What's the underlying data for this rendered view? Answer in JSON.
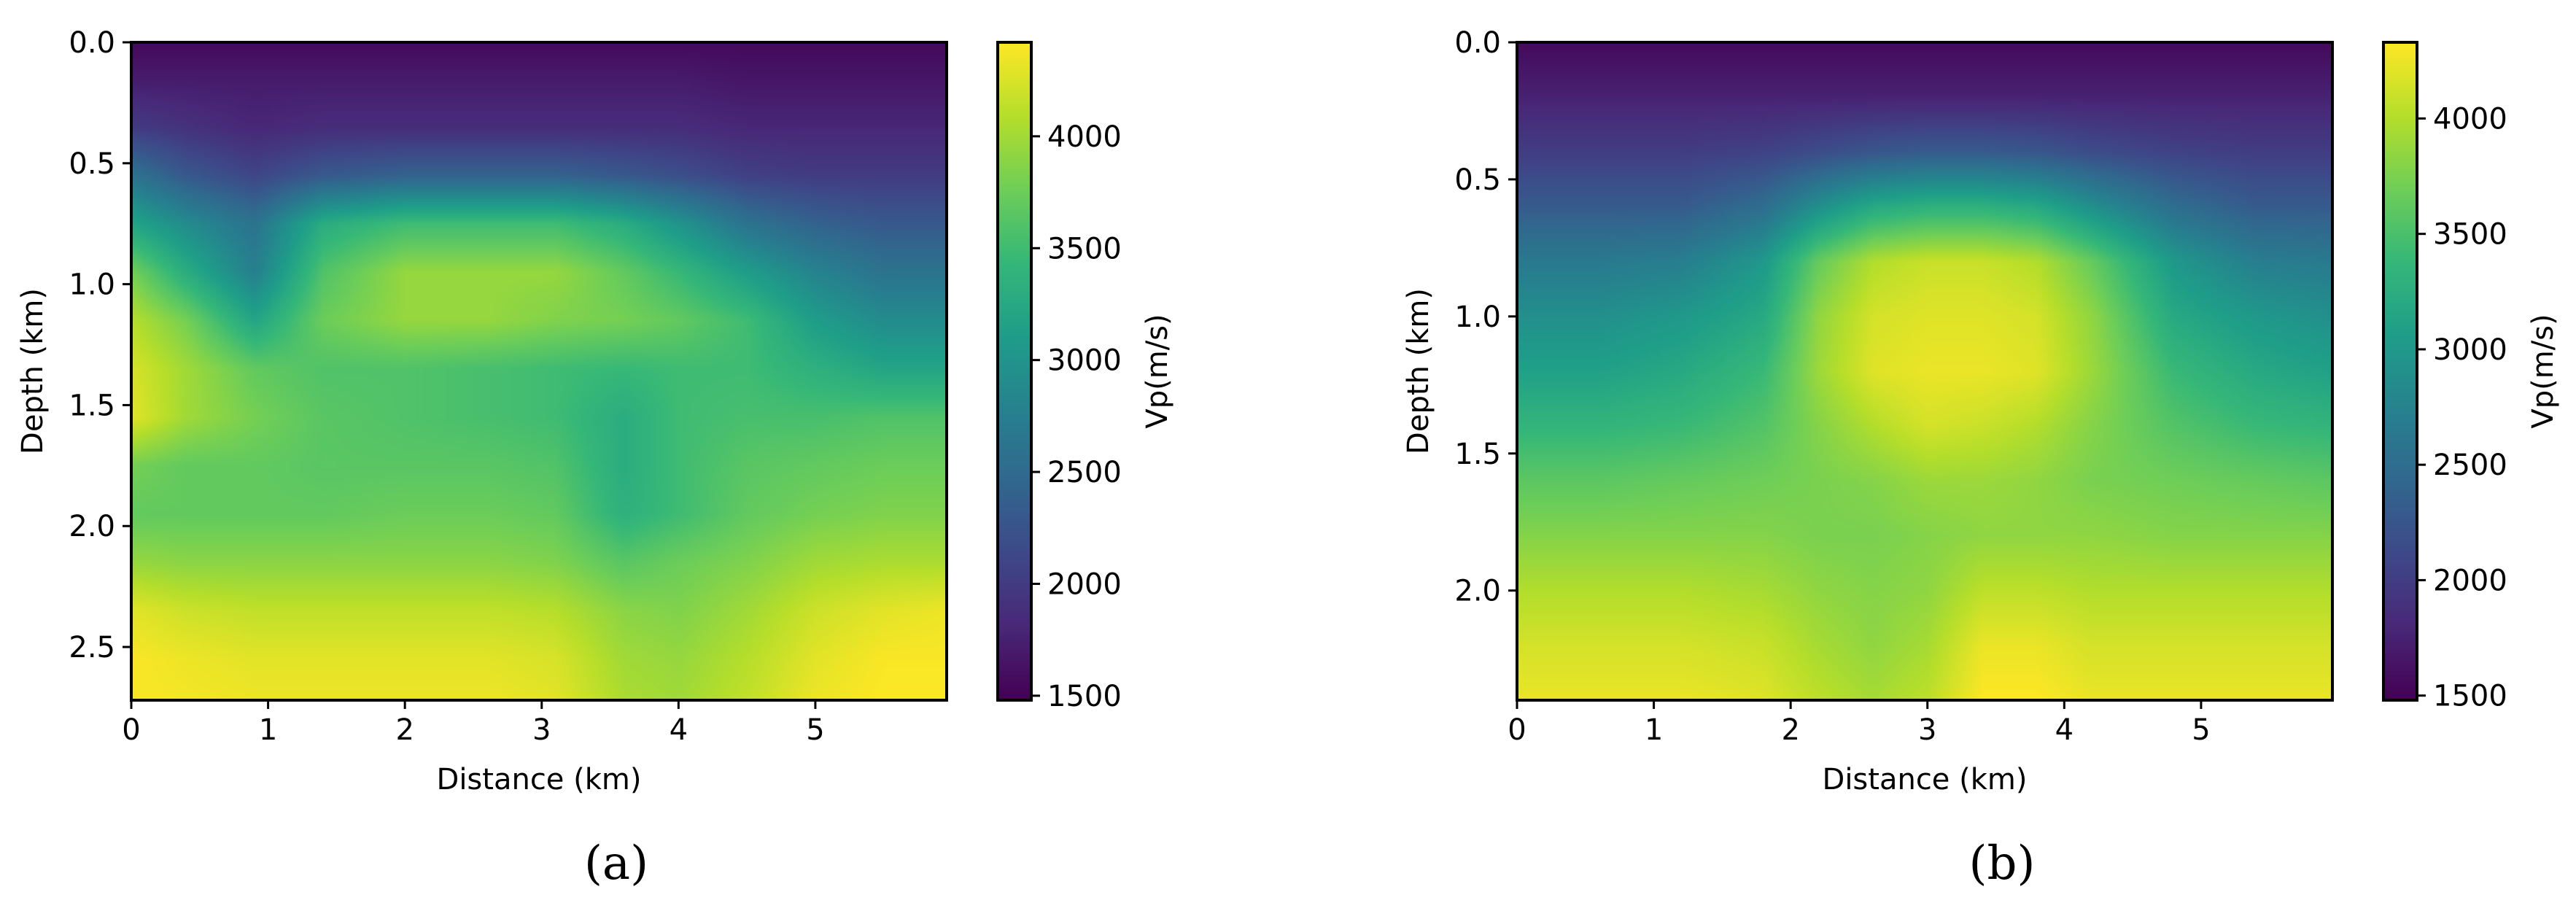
{
  "colormap": {
    "name": "viridis",
    "stops": [
      "#440154",
      "#482878",
      "#3e4989",
      "#31688e",
      "#26828e",
      "#1f9e89",
      "#35b779",
      "#6ece58",
      "#b5de2b",
      "#fde725"
    ]
  },
  "chart_data": [
    {
      "type": "heatmap",
      "panel_label": "(a)",
      "xlabel": "Distance (km)",
      "ylabel": "Depth (km)",
      "xlim": [
        0,
        5.96
      ],
      "ylim": [
        2.72,
        0.0
      ],
      "y_inverted": true,
      "x_ticks": [
        "0",
        "1",
        "2",
        "3",
        "4",
        "5"
      ],
      "y_ticks": [
        "0.0",
        "0.5",
        "1.0",
        "1.5",
        "2.0",
        "2.5"
      ],
      "colorbar": {
        "label": "Vp(m/s)",
        "range": [
          1480,
          4420
        ],
        "ticks": [
          "1500",
          "2000",
          "2500",
          "3000",
          "3500",
          "4000"
        ]
      },
      "grid": false,
      "field": {
        "x_km": [
          0.0,
          0.4,
          0.9,
          1.4,
          2.0,
          2.6,
          3.1,
          3.6,
          4.0,
          4.5,
          5.0,
          5.5,
          5.96
        ],
        "depth_km": [
          0.0,
          0.15,
          0.35,
          0.55,
          0.75,
          0.95,
          1.15,
          1.35,
          1.55,
          1.75,
          1.95,
          2.15,
          2.35,
          2.55,
          2.72
        ],
        "vp_m_per_s": [
          [
            1550,
            1550,
            1550,
            1550,
            1550,
            1550,
            1550,
            1550,
            1550,
            1550,
            1550,
            1550,
            1550
          ],
          [
            1700,
            1700,
            1700,
            1700,
            1700,
            1700,
            1700,
            1700,
            1700,
            1650,
            1650,
            1650,
            1650
          ],
          [
            2000,
            1900,
            1800,
            1850,
            1850,
            1850,
            1850,
            1850,
            1850,
            1800,
            1800,
            1800,
            1800
          ],
          [
            2600,
            2300,
            2100,
            2300,
            2400,
            2400,
            2400,
            2300,
            2200,
            2050,
            2000,
            2000,
            2000
          ],
          [
            3200,
            2900,
            2600,
            3300,
            3500,
            3500,
            3500,
            3300,
            3000,
            2600,
            2400,
            2300,
            2300
          ],
          [
            3800,
            3300,
            2750,
            3600,
            3950,
            3950,
            3950,
            3700,
            3450,
            3100,
            2800,
            2600,
            2600
          ],
          [
            4100,
            3800,
            3200,
            3750,
            3950,
            3950,
            3850,
            3800,
            3700,
            3500,
            3100,
            2900,
            2900
          ],
          [
            4250,
            4000,
            3700,
            3600,
            3600,
            3550,
            3500,
            3450,
            3500,
            3500,
            3350,
            3200,
            3200
          ],
          [
            4300,
            4000,
            3800,
            3650,
            3600,
            3550,
            3500,
            3300,
            3500,
            3550,
            3550,
            3600,
            3600
          ],
          [
            3800,
            3700,
            3700,
            3650,
            3650,
            3650,
            3600,
            3300,
            3500,
            3650,
            3700,
            3750,
            3750
          ],
          [
            3700,
            3700,
            3700,
            3700,
            3750,
            3750,
            3700,
            3350,
            3500,
            3700,
            3800,
            3850,
            3850
          ],
          [
            3950,
            3900,
            3900,
            3900,
            3900,
            3900,
            3850,
            3650,
            3750,
            3850,
            4000,
            4050,
            4050
          ],
          [
            4300,
            4200,
            4150,
            4150,
            4150,
            4150,
            4100,
            3900,
            3850,
            4000,
            4200,
            4300,
            4350
          ],
          [
            4400,
            4350,
            4300,
            4300,
            4300,
            4300,
            4250,
            4000,
            3950,
            4100,
            4300,
            4400,
            4400
          ],
          [
            4400,
            4380,
            4350,
            4350,
            4350,
            4350,
            4300,
            4050,
            4000,
            4150,
            4350,
            4420,
            4420
          ]
        ]
      }
    },
    {
      "type": "heatmap",
      "panel_label": "(b)",
      "xlabel": "Distance (km)",
      "ylabel": "Depth (km)",
      "xlim": [
        0,
        5.96
      ],
      "ylim": [
        2.4,
        0.0
      ],
      "y_inverted": true,
      "x_ticks": [
        "0",
        "1",
        "2",
        "3",
        "4",
        "5"
      ],
      "y_ticks": [
        "0.0",
        "0.5",
        "1.0",
        "1.5",
        "2.0"
      ],
      "colorbar": {
        "label": "Vp(m/s)",
        "range": [
          1480,
          4330
        ],
        "ticks": [
          "1500",
          "2000",
          "2500",
          "3000",
          "3500",
          "4000"
        ]
      },
      "grid": false,
      "field": {
        "x_km": [
          0.0,
          0.6,
          1.2,
          1.8,
          2.2,
          2.6,
          3.0,
          3.4,
          3.8,
          4.2,
          4.8,
          5.4,
          5.96
        ],
        "depth_km": [
          0.0,
          0.2,
          0.4,
          0.6,
          0.8,
          1.0,
          1.2,
          1.4,
          1.6,
          1.8,
          2.0,
          2.2,
          2.4
        ],
        "vp_m_per_s": [
          [
            1550,
            1550,
            1550,
            1550,
            1550,
            1550,
            1550,
            1550,
            1550,
            1550,
            1550,
            1550,
            1550
          ],
          [
            1750,
            1750,
            1750,
            1750,
            1750,
            1750,
            1750,
            1750,
            1750,
            1750,
            1750,
            1750,
            1750
          ],
          [
            2000,
            2000,
            2000,
            2050,
            2150,
            2250,
            2300,
            2300,
            2250,
            2150,
            2050,
            2000,
            2000
          ],
          [
            2300,
            2300,
            2300,
            2500,
            2900,
            3200,
            3300,
            3300,
            3200,
            2900,
            2500,
            2300,
            2300
          ],
          [
            2650,
            2650,
            2700,
            3000,
            3650,
            4000,
            4100,
            4100,
            4000,
            3650,
            3000,
            2700,
            2650
          ],
          [
            2900,
            2900,
            3000,
            3200,
            3850,
            4150,
            4200,
            4200,
            4150,
            3850,
            3200,
            3000,
            2900
          ],
          [
            3100,
            3100,
            3200,
            3400,
            3900,
            4200,
            4250,
            4250,
            4200,
            3900,
            3400,
            3200,
            3100
          ],
          [
            3350,
            3350,
            3400,
            3550,
            3800,
            4000,
            4150,
            4100,
            4000,
            3800,
            3550,
            3400,
            3350
          ],
          [
            3600,
            3600,
            3650,
            3700,
            3750,
            3800,
            3900,
            3900,
            3850,
            3750,
            3700,
            3650,
            3600
          ],
          [
            3800,
            3800,
            3800,
            3800,
            3750,
            3750,
            3800,
            3850,
            3850,
            3850,
            3800,
            3800,
            3800
          ],
          [
            4000,
            4000,
            4000,
            3950,
            3850,
            3800,
            3850,
            4050,
            4050,
            4000,
            4000,
            4000,
            4000
          ],
          [
            4150,
            4150,
            4150,
            4100,
            3950,
            3850,
            3950,
            4250,
            4250,
            4150,
            4150,
            4150,
            4150
          ],
          [
            4250,
            4250,
            4250,
            4200,
            4050,
            3950,
            4050,
            4330,
            4330,
            4250,
            4250,
            4250,
            4250
          ]
        ]
      }
    }
  ]
}
